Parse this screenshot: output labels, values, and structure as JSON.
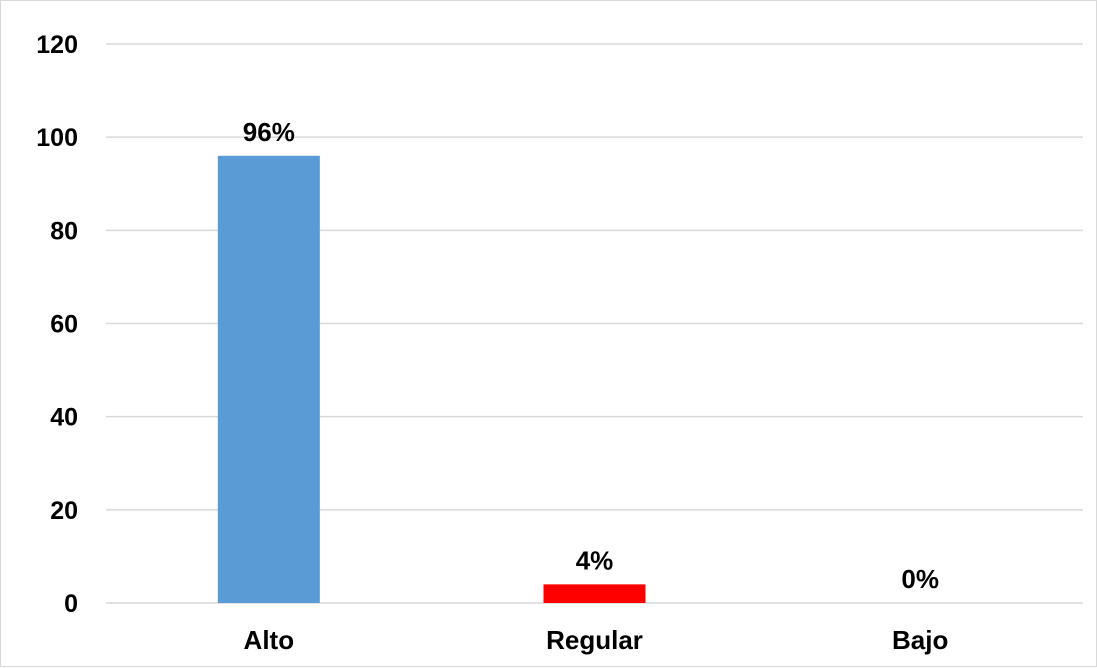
{
  "chart_data": {
    "type": "bar",
    "title": "",
    "xlabel": "",
    "ylabel": "",
    "categories": [
      "Alto",
      "Regular",
      "Bajo"
    ],
    "values": [
      96,
      4,
      0
    ],
    "data_labels": [
      "96%",
      "4%",
      "0%"
    ],
    "colors": [
      "#5b9bd5",
      "#ff0000",
      "#a5a5a5"
    ],
    "ylim": [
      0,
      120
    ],
    "yticks": [
      0,
      20,
      40,
      60,
      80,
      100,
      120
    ],
    "grid": true,
    "legend": "none"
  }
}
